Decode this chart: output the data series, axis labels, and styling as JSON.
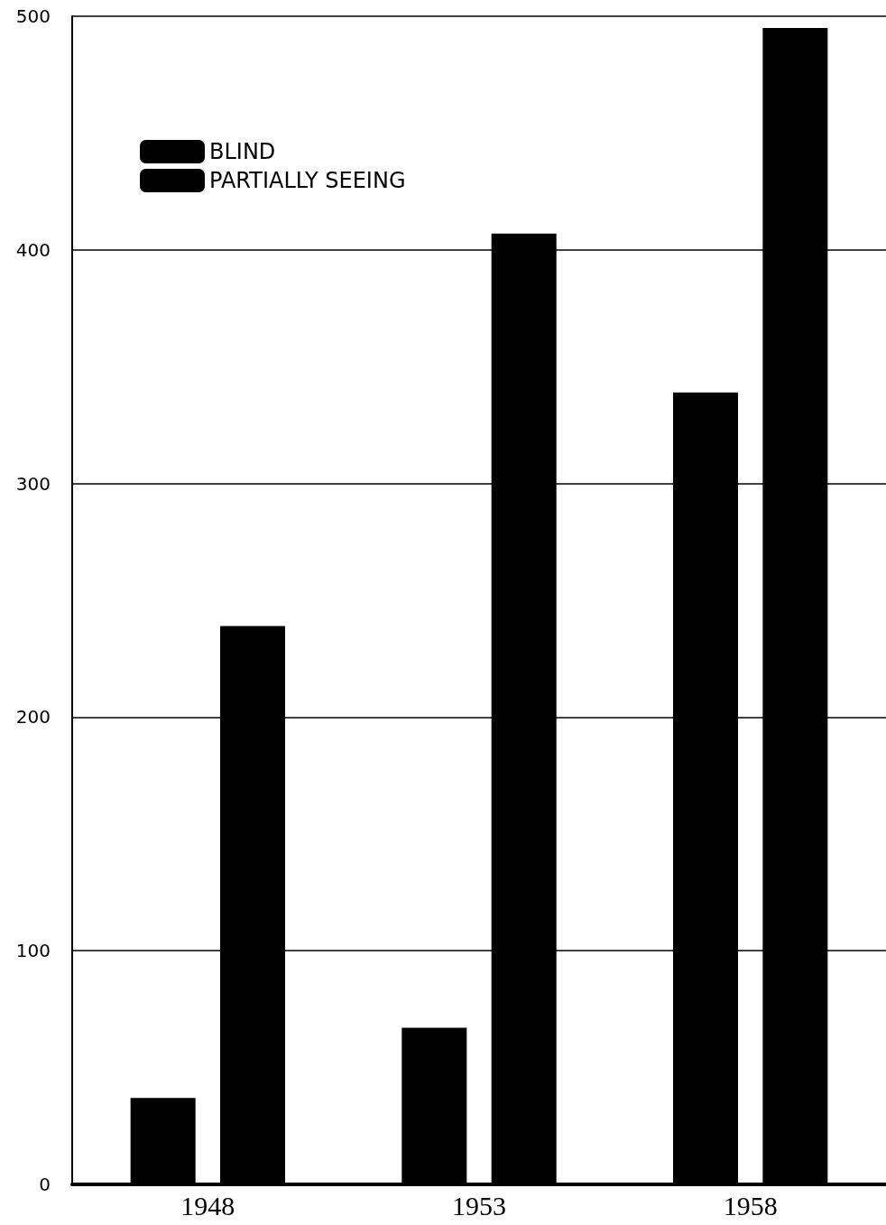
{
  "chart_data": {
    "type": "bar",
    "categories": [
      "1948",
      "1953",
      "1958"
    ],
    "series": [
      {
        "name": "BLIND",
        "color": "#000000",
        "values": [
          37,
          67,
          339
        ]
      },
      {
        "name": "PARTIALLY SEEING",
        "color": "#000000",
        "values": [
          239,
          407,
          495
        ]
      }
    ],
    "ylim": [
      0,
      500
    ],
    "yticks": [
      0,
      100,
      200,
      300,
      400,
      500
    ],
    "grid": "y",
    "legend": "top left"
  }
}
